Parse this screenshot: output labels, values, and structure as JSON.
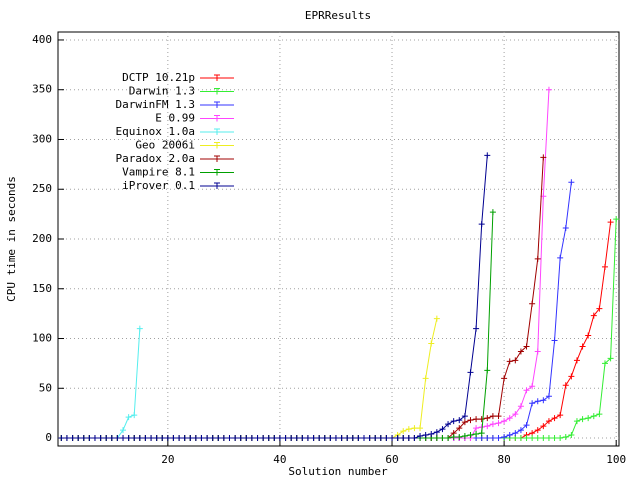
{
  "chart_data": {
    "type": "line",
    "title": "EPRResults",
    "x_label": "Solution number",
    "y_label": "CPU time in seconds",
    "xlim": [
      0.4,
      100.5
    ],
    "ylim": [
      -8,
      408
    ],
    "xticks": [
      20,
      40,
      60,
      80,
      100
    ],
    "yticks": [
      0,
      50,
      100,
      150,
      200,
      250,
      300,
      350,
      400
    ],
    "grid": true,
    "legend": "top-left",
    "x": [
      1,
      2,
      3,
      4,
      5,
      6,
      7,
      8,
      9,
      10,
      11,
      12,
      13,
      14,
      15,
      16,
      17,
      18,
      19,
      20,
      21,
      22,
      23,
      24,
      25,
      26,
      27,
      28,
      29,
      30,
      31,
      32,
      33,
      34,
      35,
      36,
      37,
      38,
      39,
      40,
      41,
      42,
      43,
      44,
      45,
      46,
      47,
      48,
      49,
      50,
      51,
      52,
      53,
      54,
      55,
      56,
      57,
      58,
      59,
      60,
      61,
      62,
      63,
      64,
      65,
      66,
      67,
      68,
      69,
      70,
      71,
      72,
      73,
      74,
      75,
      76,
      77,
      78,
      79,
      80,
      81,
      82,
      83,
      84,
      85,
      86,
      87,
      88,
      89,
      90,
      91,
      92,
      93,
      94,
      95,
      96,
      97,
      98,
      99,
      100
    ],
    "series": [
      {
        "name": "DCTP 10.21p",
        "color": "#ff0000",
        "values": [
          0,
          0,
          0,
          0,
          0,
          0,
          0,
          0,
          0,
          0,
          0,
          0,
          0,
          0,
          0,
          0,
          0,
          0,
          0,
          0,
          0,
          0,
          0,
          0,
          0,
          0,
          0,
          0,
          0,
          0,
          0,
          0,
          0,
          0,
          0,
          0,
          0,
          0,
          0,
          0,
          0,
          0,
          0,
          0,
          0,
          0,
          0,
          0,
          0,
          0,
          0,
          0,
          0,
          0,
          0,
          0,
          0,
          0,
          0,
          0,
          0,
          0,
          0,
          0,
          0,
          0,
          0,
          0,
          0,
          0,
          0,
          0,
          0,
          0,
          0,
          0,
          0,
          0,
          0,
          0,
          0,
          0,
          0,
          3,
          5,
          8,
          12,
          17,
          20,
          23,
          53,
          62,
          78,
          92,
          103,
          123,
          130,
          172,
          217,
          null
        ]
      },
      {
        "name": "Darwin 1.3",
        "color": "#33ee33",
        "values": [
          0,
          0,
          0,
          0,
          0,
          0,
          0,
          0,
          0,
          0,
          0,
          0,
          0,
          0,
          0,
          0,
          0,
          0,
          0,
          0,
          0,
          0,
          0,
          0,
          0,
          0,
          0,
          0,
          0,
          0,
          0,
          0,
          0,
          0,
          0,
          0,
          0,
          0,
          0,
          0,
          0,
          0,
          0,
          0,
          0,
          0,
          0,
          0,
          0,
          0,
          0,
          0,
          0,
          0,
          0,
          0,
          0,
          0,
          0,
          0,
          0,
          0,
          0,
          0,
          0,
          0,
          0,
          0,
          0,
          0,
          0,
          0,
          0,
          0,
          0,
          0,
          0,
          0,
          0,
          0,
          0,
          0,
          0,
          0,
          0,
          0,
          0,
          0,
          0,
          0,
          1,
          3,
          17,
          19,
          20,
          22,
          24,
          75,
          80,
          220
        ]
      },
      {
        "name": "DarwinFM 1.3",
        "color": "#3333ff",
        "values": [
          0,
          0,
          0,
          0,
          0,
          0,
          0,
          0,
          0,
          0,
          0,
          0,
          0,
          0,
          0,
          0,
          0,
          0,
          0,
          0,
          0,
          0,
          0,
          0,
          0,
          0,
          0,
          0,
          0,
          0,
          0,
          0,
          0,
          0,
          0,
          0,
          0,
          0,
          0,
          0,
          0,
          0,
          0,
          0,
          0,
          0,
          0,
          0,
          0,
          0,
          0,
          0,
          0,
          0,
          0,
          0,
          0,
          0,
          0,
          0,
          0,
          0,
          0,
          0,
          0,
          0,
          0,
          0,
          0,
          0,
          0,
          0,
          0,
          0,
          0,
          0,
          0,
          0,
          0,
          1,
          3,
          5,
          8,
          13,
          35,
          37,
          38,
          42,
          98,
          181,
          211,
          257,
          null,
          null,
          null,
          null,
          null,
          null,
          null,
          null
        ]
      },
      {
        "name": "E 0.99",
        "color": "#ff44ff",
        "values": [
          0,
          0,
          0,
          0,
          0,
          0,
          0,
          0,
          0,
          0,
          0,
          0,
          0,
          0,
          0,
          0,
          0,
          0,
          0,
          0,
          0,
          0,
          0,
          0,
          0,
          0,
          0,
          0,
          0,
          0,
          0,
          0,
          0,
          0,
          0,
          0,
          0,
          0,
          0,
          0,
          0,
          0,
          0,
          0,
          0,
          0,
          0,
          0,
          0,
          0,
          0,
          0,
          0,
          0,
          0,
          0,
          0,
          0,
          0,
          0,
          0,
          0,
          0,
          0,
          0,
          0,
          0,
          0,
          0,
          0,
          0,
          0,
          0,
          0,
          10,
          11,
          12,
          14,
          15,
          17,
          20,
          24,
          32,
          48,
          52,
          87,
          243,
          350,
          null,
          null,
          null,
          null,
          null,
          null,
          null,
          null,
          null,
          null,
          null,
          null
        ]
      },
      {
        "name": "Equinox 1.0a",
        "color": "#55eeee",
        "values": [
          0,
          0,
          0,
          0,
          0,
          0,
          0,
          0,
          0,
          0,
          0,
          8,
          21,
          23,
          110,
          null,
          null,
          null,
          null,
          null,
          null,
          null,
          null,
          null,
          null,
          null,
          null,
          null,
          null,
          null,
          null,
          null,
          null,
          null,
          null,
          null,
          null,
          null,
          null,
          null,
          null,
          null,
          null,
          null,
          null,
          null,
          null,
          null,
          null,
          null,
          null,
          null,
          null,
          null,
          null,
          null,
          null,
          null,
          null,
          null,
          null,
          null,
          null,
          null,
          null,
          null,
          null,
          null,
          null,
          null,
          null,
          null,
          null,
          null,
          null,
          null,
          null,
          null,
          null,
          null,
          null,
          null,
          null,
          null,
          null,
          null,
          null,
          null,
          null,
          null,
          null,
          null,
          null,
          null,
          null,
          null,
          null,
          null,
          null,
          null
        ]
      },
      {
        "name": "Geo 2006i",
        "color": "#eeee22",
        "values": [
          0,
          0,
          0,
          0,
          0,
          0,
          0,
          0,
          0,
          0,
          0,
          0,
          0,
          0,
          0,
          0,
          0,
          0,
          0,
          0,
          0,
          0,
          0,
          0,
          0,
          0,
          0,
          0,
          0,
          0,
          0,
          0,
          0,
          0,
          0,
          0,
          0,
          0,
          0,
          0,
          0,
          0,
          0,
          0,
          0,
          0,
          0,
          0,
          0,
          0,
          0,
          0,
          0,
          0,
          0,
          0,
          0,
          0,
          0,
          0,
          3,
          7,
          9,
          10,
          10,
          60,
          95,
          120,
          null,
          null,
          null,
          null,
          null,
          null,
          null,
          null,
          null,
          null,
          null,
          null,
          null,
          null,
          null,
          null,
          null,
          null,
          null,
          null,
          null,
          null,
          null,
          null,
          null,
          null,
          null,
          null,
          null,
          null,
          null,
          null
        ]
      },
      {
        "name": "Paradox 2.0a",
        "color": "#a00000",
        "values": [
          0,
          0,
          0,
          0,
          0,
          0,
          0,
          0,
          0,
          0,
          0,
          0,
          0,
          0,
          0,
          0,
          0,
          0,
          0,
          0,
          0,
          0,
          0,
          0,
          0,
          0,
          0,
          0,
          0,
          0,
          0,
          0,
          0,
          0,
          0,
          0,
          0,
          0,
          0,
          0,
          0,
          0,
          0,
          0,
          0,
          0,
          0,
          0,
          0,
          0,
          0,
          0,
          0,
          0,
          0,
          0,
          0,
          0,
          0,
          0,
          0,
          0,
          0,
          0,
          0,
          0,
          0,
          0,
          0,
          0,
          5,
          10,
          16,
          18,
          19,
          19,
          20,
          22,
          22,
          60,
          77,
          78,
          87,
          92,
          135,
          180,
          282,
          null,
          null,
          null,
          null,
          null,
          null,
          null,
          null,
          null,
          null,
          null,
          null,
          null
        ]
      },
      {
        "name": "Vampire 8.1",
        "color": "#00a000",
        "values": [
          0,
          0,
          0,
          0,
          0,
          0,
          0,
          0,
          0,
          0,
          0,
          0,
          0,
          0,
          0,
          0,
          0,
          0,
          0,
          0,
          0,
          0,
          0,
          0,
          0,
          0,
          0,
          0,
          0,
          0,
          0,
          0,
          0,
          0,
          0,
          0,
          0,
          0,
          0,
          0,
          0,
          0,
          0,
          0,
          0,
          0,
          0,
          0,
          0,
          0,
          0,
          0,
          0,
          0,
          0,
          0,
          0,
          0,
          0,
          0,
          0,
          0,
          0,
          0,
          0,
          0,
          0,
          0,
          0,
          0,
          1,
          1,
          2,
          3,
          4,
          5,
          68,
          227,
          null,
          null,
          null,
          null,
          null,
          null,
          null,
          null,
          null,
          null,
          null,
          null,
          null,
          null,
          null,
          null,
          null,
          null,
          null,
          null,
          null,
          null
        ]
      },
      {
        "name": "iProver 0.1",
        "color": "#000090",
        "values": [
          0,
          0,
          0,
          0,
          0,
          0,
          0,
          0,
          0,
          0,
          0,
          0,
          0,
          0,
          0,
          0,
          0,
          0,
          0,
          0,
          0,
          0,
          0,
          0,
          0,
          0,
          0,
          0,
          0,
          0,
          0,
          0,
          0,
          0,
          0,
          0,
          0,
          0,
          0,
          0,
          0,
          0,
          0,
          0,
          0,
          0,
          0,
          0,
          0,
          0,
          0,
          0,
          0,
          0,
          0,
          0,
          0,
          0,
          0,
          0,
          0,
          0,
          0,
          0,
          2,
          3,
          4,
          6,
          9,
          14,
          17,
          18,
          22,
          66,
          110,
          215,
          284,
          null,
          null,
          null,
          null,
          null,
          null,
          null,
          null,
          null,
          null,
          null,
          null,
          null,
          null,
          null,
          null,
          null,
          null,
          null,
          null,
          null,
          null,
          null
        ]
      }
    ]
  }
}
